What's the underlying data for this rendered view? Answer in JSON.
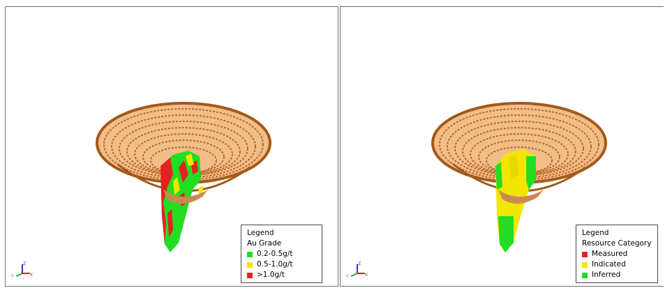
{
  "viewports": [
    {
      "legend": {
        "title": "Legend",
        "subtitle": "Au Grade",
        "items": [
          {
            "label": "0.2-0.5g/t",
            "color": "#22dd22"
          },
          {
            "label": "0.5-1.0g/t",
            "color": "#f2e600"
          },
          {
            "label": ">1.0g/t",
            "color": "#e62020"
          }
        ]
      },
      "axes": {
        "x": "X",
        "y": "Y",
        "z": "Z"
      }
    },
    {
      "legend": {
        "title": "Legend",
        "subtitle": "Resource Category",
        "items": [
          {
            "label": "Measured",
            "color": "#e62020"
          },
          {
            "label": "Indicated",
            "color": "#f2e600"
          },
          {
            "label": "Inferred",
            "color": "#22dd22"
          }
        ]
      },
      "axes": {
        "x": "X",
        "y": "Y",
        "z": "Z"
      }
    }
  ],
  "colors": {
    "pit_fill": "#f2bd87",
    "pit_outline": "#a25a1a",
    "pit_lines": "#b8692a",
    "background": "#ffffff"
  }
}
